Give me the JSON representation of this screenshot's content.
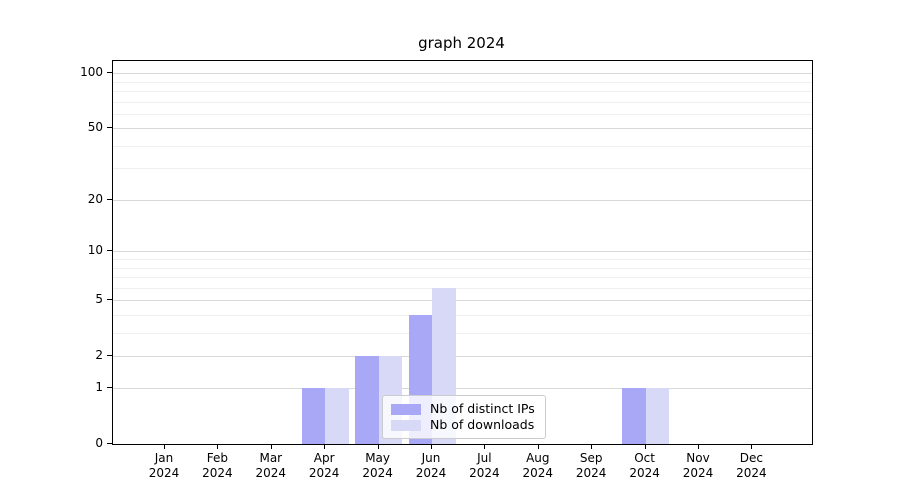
{
  "title": "graph 2024",
  "colors": {
    "ips": "#a8a8f7",
    "downloads": "#d8d8f7",
    "grid_major": "#d8d8d8",
    "grid_minor": "#efefef",
    "axis": "#000000",
    "legend_border": "#cccccc",
    "legend_background": "rgba(255,255,255,0.8)"
  },
  "legend": {
    "items": [
      {
        "label": "Nb of distinct IPs",
        "series": "ips"
      },
      {
        "label": "Nb of downloads",
        "series": "downloads"
      }
    ]
  },
  "chart_data": {
    "type": "bar",
    "title": "graph 2024",
    "categories": [
      "Jan 2024",
      "Feb 2024",
      "Mar 2024",
      "Apr 2024",
      "May 2024",
      "Jun 2024",
      "Jul 2024",
      "Aug 2024",
      "Sep 2024",
      "Oct 2024",
      "Nov 2024",
      "Dec 2024"
    ],
    "series": [
      {
        "name": "Nb of distinct IPs",
        "color": "#a8a8f7",
        "values": [
          0,
          0,
          0,
          1,
          2,
          4,
          0,
          0,
          0,
          1,
          0,
          0
        ]
      },
      {
        "name": "Nb of downloads",
        "color": "#d8d8f7",
        "values": [
          0,
          0,
          0,
          1,
          2,
          6,
          0,
          0,
          0,
          1,
          0,
          0
        ]
      }
    ],
    "xlabel": "",
    "ylabel": "",
    "y_scale": "log1p",
    "ylim": [
      0,
      117
    ],
    "y_major_ticks": [
      0,
      1,
      2,
      5,
      10,
      20,
      50,
      100
    ],
    "y_minor_gridlines": [
      3,
      4,
      6,
      7,
      8,
      9,
      30,
      40,
      60,
      70,
      80,
      90
    ],
    "grid": true,
    "legend_position": "lower center"
  }
}
